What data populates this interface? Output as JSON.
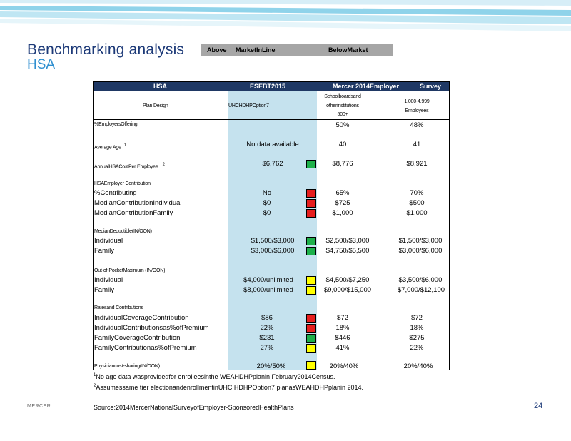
{
  "title": "Benchmarking  analysis",
  "subtitle": "HSA",
  "legend": {
    "above": "Above",
    "inline": "MarketInLine",
    "below": "BelowMarket"
  },
  "header": {
    "col1": "HSA",
    "col2": "ESEBT2015",
    "col3": "Mercer   2014Employer",
    "col4": "Survey"
  },
  "subheader": {
    "plan_design": "Plan   Design",
    "uhc": "UHCHDHPOption7",
    "school_l1": "Schoolboardsand",
    "school_l2": "otherinstitutions",
    "school_l3": "500+",
    "emp_l1": "1,000-4,999",
    "emp_l2": "Employees"
  },
  "status_colors": {
    "green": "#1db04a",
    "red": "#e61e1e",
    "yellow": "#ffff00"
  },
  "rows": {
    "pct_offering": {
      "label": "%EmployersOffering",
      "uhc": "",
      "school": "50%",
      "emp": "48%"
    },
    "avg_age": {
      "label": "Average   Age",
      "sup": "1",
      "uhc": "No data available",
      "school": "40",
      "emp": "41"
    },
    "annual_cost": {
      "label": "AnnualHSACostPer          Employee",
      "sup": "2",
      "uhc": "$6,762",
      "school": "$8,776",
      "emp": "$8,921",
      "status": "green"
    },
    "hsa_contrib_head": {
      "label": "HSAEmployer          Contribution"
    },
    "pct_contrib": {
      "label": "%Contributing",
      "uhc": "No",
      "school": "65%",
      "emp": "70%",
      "status": "red"
    },
    "med_ind": {
      "label": "MedianContributionIndividual",
      "uhc": "$0",
      "school": "$725",
      "emp": "$500",
      "status": "red"
    },
    "med_fam": {
      "label": "MedianContributionFamily",
      "uhc": "$0",
      "school": "$1,000",
      "emp": "$1,000",
      "status": "red"
    },
    "ded_head": {
      "label": "MedianDeductible(IN/OON)"
    },
    "ded_ind": {
      "label": "Individual",
      "uhc": "$1,500/$3,000",
      "school": "$2,500/$3,000",
      "emp": "$1,500/$3,000",
      "status": "green"
    },
    "ded_fam": {
      "label": "Family",
      "uhc": "$3,000/$6,000",
      "school": "$4,750/$5,500",
      "emp": "$3,000/$6,000",
      "status": "green"
    },
    "oop_head": {
      "label": "Out-of-PocketMaximum              (IN/OON)"
    },
    "oop_ind": {
      "label": "Individual",
      "uhc": "$4,000/unlimited",
      "school": "$4,500/$7,250",
      "emp": "$3,500/$6,000",
      "status": "yellow"
    },
    "oop_fam": {
      "label": "Family",
      "uhc": "$8,000/unlimited",
      "school": "$9,000/$15,000",
      "emp": "$7,000/$12,100",
      "status": "yellow"
    },
    "rates_head": {
      "label": "Ratesand        Contributions"
    },
    "ind_cov": {
      "label": "IndividualCoverageContribution",
      "uhc": "$86",
      "school": "$72",
      "emp": "$72",
      "status": "red"
    },
    "ind_pct": {
      "label": "IndividualContributionsas%ofPremium",
      "uhc": "22%",
      "school": "18%",
      "emp": "18%",
      "status": "red"
    },
    "fam_cov": {
      "label": "FamilyCoverageContribution",
      "uhc": "$231",
      "school": "$446",
      "emp": "$275",
      "status": "green"
    },
    "fam_pct": {
      "label": "FamilyContributionas%ofPremium",
      "uhc": "27%",
      "school": "41%",
      "emp": "22%",
      "status": "yellow"
    },
    "phys": {
      "label": "Physiciancost-sharing(IN/OON)",
      "uhc": "20%/50%",
      "school": "20%/40%",
      "emp": "20%/40%",
      "status": "yellow"
    }
  },
  "footnotes": {
    "fn1_mark": "1",
    "fn1": "No age data wasprovidedfor enrolleesinthe WEAHDHPplanin February2014Census.",
    "fn2_mark": "2",
    "fn2": "Assumessame tier electionandenrollmentinUHC HDHPOption7 planasWEAHDHPplanin 2014."
  },
  "footer": {
    "brand": "MERCER",
    "source": "Source:2014MercerNationalSurveyofEmployer-SponsoredHealthPlans",
    "page": "24"
  }
}
